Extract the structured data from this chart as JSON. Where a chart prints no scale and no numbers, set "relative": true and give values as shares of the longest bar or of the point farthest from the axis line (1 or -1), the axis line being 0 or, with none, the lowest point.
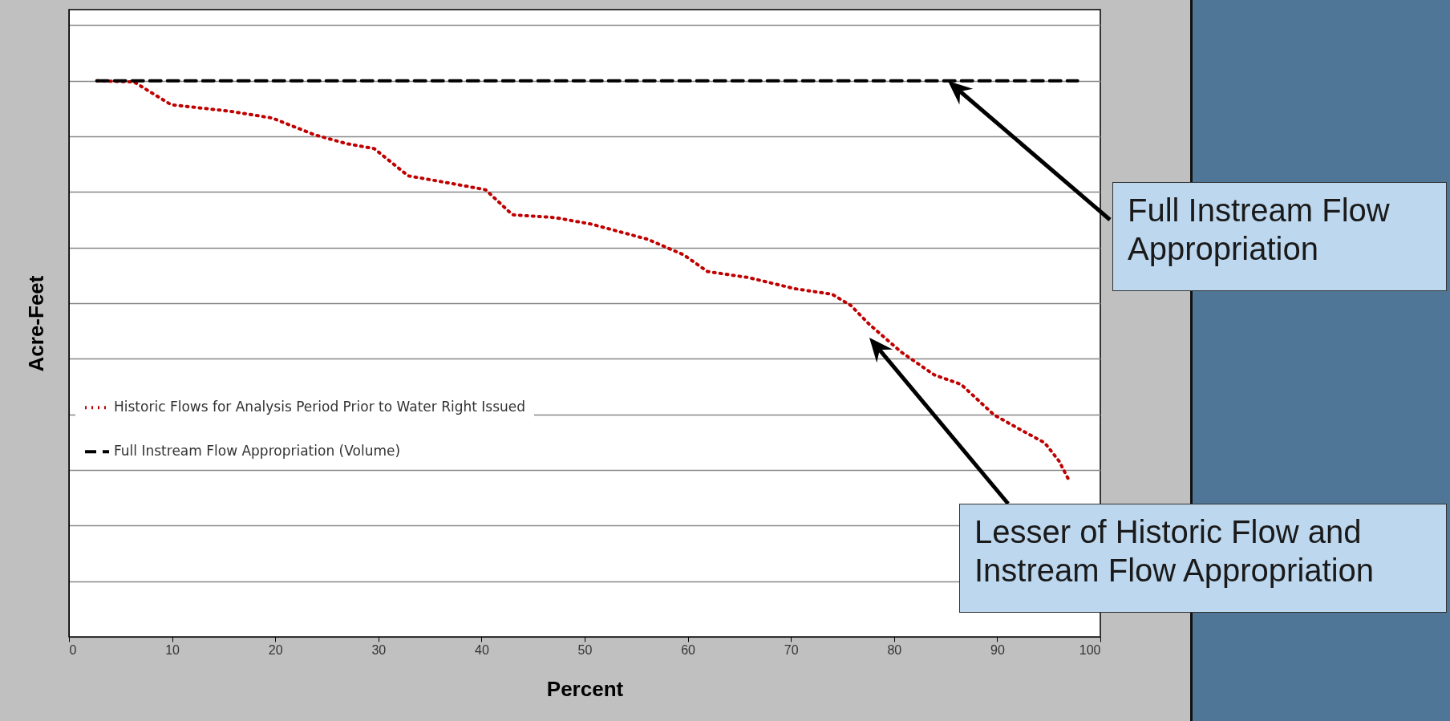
{
  "chart_data": {
    "type": "line",
    "xlabel": "Percent",
    "ylabel": "Acre-Feet",
    "relative": true,
    "xlim": [
      0,
      100
    ],
    "xticks": [
      0,
      10,
      20,
      30,
      40,
      50,
      60,
      70,
      80,
      90,
      100
    ],
    "grid": "y",
    "legend": "left",
    "series": [
      {
        "name": "Historic Flows for Analysis Period Prior to Water Right Issued",
        "color": "#c00000",
        "line_style": "dotted",
        "x": [
          2.7,
          6.3,
          9.9,
          15.7,
          19.7,
          23.8,
          26.9,
          29.6,
          32.9,
          37.2,
          40.4,
          43.0,
          47.1,
          50.7,
          56.1,
          59.6,
          61.9,
          65.9,
          70.4,
          74.0,
          75.8,
          77.6,
          80.7,
          83.9,
          86.5,
          89.7,
          92.4,
          94.6,
          96.0,
          97.0
        ],
        "values": [
          1.0,
          0.998,
          0.957,
          0.945,
          0.933,
          0.903,
          0.887,
          0.878,
          0.829,
          0.815,
          0.804,
          0.759,
          0.754,
          0.742,
          0.715,
          0.687,
          0.657,
          0.646,
          0.626,
          0.616,
          0.596,
          0.562,
          0.512,
          0.471,
          0.454,
          0.399,
          0.371,
          0.349,
          0.316,
          0.28
        ]
      },
      {
        "name": "Full Instream Flow Appropriation (Volume)",
        "color": "#000000",
        "line_style": "dashed",
        "x": [
          2.7,
          97.8
        ],
        "values": [
          1,
          1
        ]
      }
    ],
    "annotations": [
      "Full Instream Flow Appropriation",
      "Lesser of Historic Flow and Instream Flow Appropriation"
    ]
  }
}
